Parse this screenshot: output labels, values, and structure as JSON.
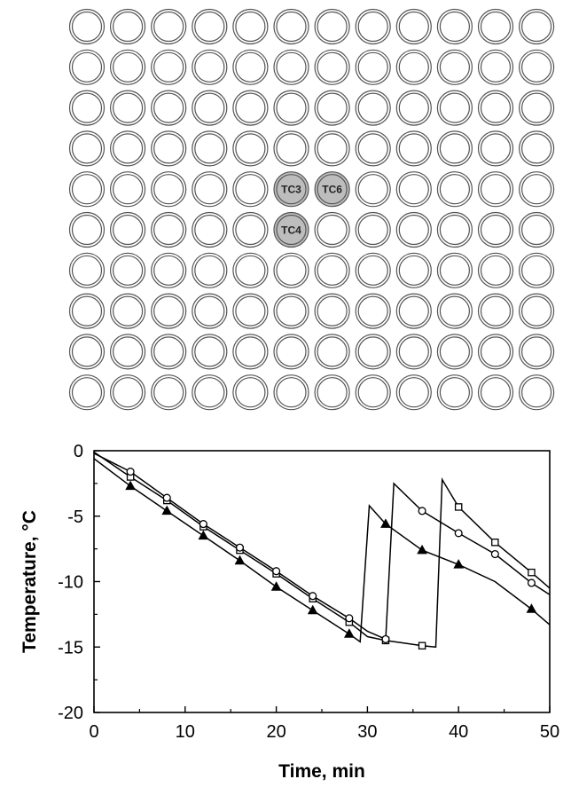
{
  "well_plate": {
    "rows": 10,
    "cols": 12,
    "thermocouples": [
      {
        "label": "TC3",
        "row": 5,
        "col": 6
      },
      {
        "label": "TC6",
        "row": 5,
        "col": 7
      },
      {
        "label": "TC4",
        "row": 6,
        "col": 6
      }
    ],
    "colors": {
      "well_fill": "#ffffff",
      "tc_fill": "#bdbdbd",
      "stroke": "#555555"
    }
  },
  "chart_data": {
    "type": "line",
    "title": "",
    "xlabel": "Time, min",
    "ylabel": "Temperature, °C",
    "xlim": [
      0,
      50
    ],
    "ylim": [
      -20,
      0
    ],
    "xticks": [
      0,
      10,
      20,
      30,
      40,
      50
    ],
    "yticks": [
      0,
      -5,
      -10,
      -15,
      -20
    ],
    "grid": false,
    "series": [
      {
        "marker": "square",
        "line": [
          [
            0,
            -0.1
          ],
          [
            4,
            -2.0
          ],
          [
            8,
            -3.8
          ],
          [
            12,
            -5.8
          ],
          [
            16,
            -7.6
          ],
          [
            20,
            -9.4
          ],
          [
            24,
            -11.3
          ],
          [
            28,
            -13.1
          ],
          [
            30,
            -14.2
          ],
          [
            32,
            -14.5
          ],
          [
            34,
            -14.7
          ],
          [
            36,
            -14.9
          ],
          [
            37.5,
            -15.0
          ],
          [
            38.2,
            -2.2
          ],
          [
            40,
            -4.3
          ],
          [
            44,
            -7.0
          ],
          [
            48,
            -9.3
          ],
          [
            50,
            -10.5
          ]
        ],
        "marker_points": [
          [
            4,
            -2.0
          ],
          [
            8,
            -3.8
          ],
          [
            12,
            -5.8
          ],
          [
            16,
            -7.6
          ],
          [
            20,
            -9.4
          ],
          [
            24,
            -11.3
          ],
          [
            28,
            -13.1
          ],
          [
            32,
            -14.5
          ],
          [
            36,
            -14.9
          ],
          [
            40,
            -4.3
          ],
          [
            44,
            -7.0
          ],
          [
            48,
            -9.3
          ]
        ]
      },
      {
        "marker": "circle",
        "line": [
          [
            0,
            -0.2
          ],
          [
            4,
            -1.6
          ],
          [
            8,
            -3.6
          ],
          [
            12,
            -5.6
          ],
          [
            16,
            -7.4
          ],
          [
            20,
            -9.2
          ],
          [
            24,
            -11.1
          ],
          [
            28,
            -12.8
          ],
          [
            30,
            -13.8
          ],
          [
            32,
            -14.4
          ],
          [
            32.9,
            -2.5
          ],
          [
            36,
            -4.6
          ],
          [
            40,
            -6.3
          ],
          [
            44,
            -7.9
          ],
          [
            48,
            -10.1
          ],
          [
            50,
            -11.0
          ]
        ],
        "marker_points": [
          [
            4,
            -1.6
          ],
          [
            8,
            -3.6
          ],
          [
            12,
            -5.6
          ],
          [
            16,
            -7.4
          ],
          [
            20,
            -9.2
          ],
          [
            24,
            -11.1
          ],
          [
            28,
            -12.8
          ],
          [
            32,
            -14.4
          ],
          [
            36,
            -4.6
          ],
          [
            40,
            -6.3
          ],
          [
            44,
            -7.9
          ],
          [
            48,
            -10.1
          ]
        ]
      },
      {
        "marker": "triangle",
        "line": [
          [
            0,
            -0.6
          ],
          [
            4,
            -2.7
          ],
          [
            8,
            -4.6
          ],
          [
            12,
            -6.5
          ],
          [
            16,
            -8.4
          ],
          [
            20,
            -10.4
          ],
          [
            24,
            -12.2
          ],
          [
            28,
            -14.0
          ],
          [
            29.2,
            -14.6
          ],
          [
            30.2,
            -4.2
          ],
          [
            32,
            -5.6
          ],
          [
            36,
            -7.6
          ],
          [
            40,
            -8.7
          ],
          [
            44,
            -10.0
          ],
          [
            48,
            -12.1
          ],
          [
            50,
            -13.3
          ]
        ],
        "marker_points": [
          [
            4,
            -2.7
          ],
          [
            8,
            -4.6
          ],
          [
            12,
            -6.5
          ],
          [
            16,
            -8.4
          ],
          [
            20,
            -10.4
          ],
          [
            24,
            -12.2
          ],
          [
            28,
            -14.0
          ],
          [
            32,
            -5.6
          ],
          [
            36,
            -7.6
          ],
          [
            40,
            -8.7
          ],
          [
            48,
            -12.1
          ]
        ]
      }
    ]
  }
}
